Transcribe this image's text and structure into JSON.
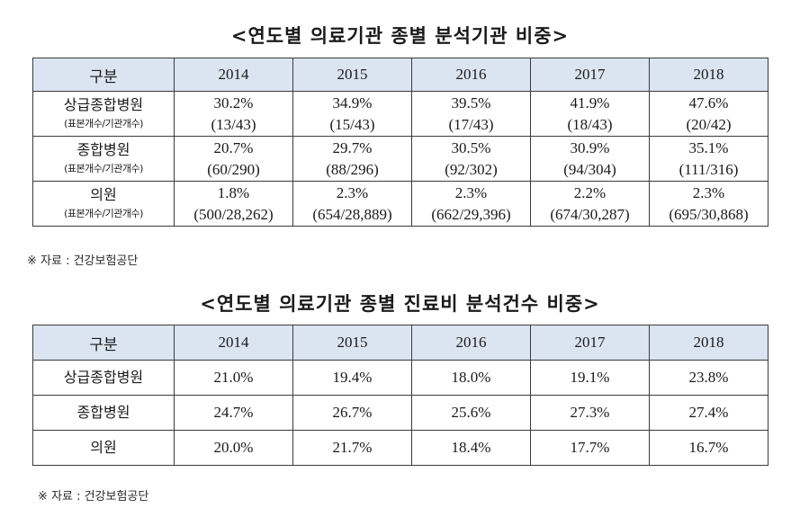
{
  "table1": {
    "title": "<연도별 의료기관 종별 분석기관 비중>",
    "header": [
      "구분",
      "2014",
      "2015",
      "2016",
      "2017",
      "2018"
    ],
    "rows": [
      {
        "label": "상급종합병원",
        "sublabel": "(표본개수/기관개수)",
        "cells": [
          {
            "pct": "30.2%",
            "count": "(13/43)"
          },
          {
            "pct": "34.9%",
            "count": "(15/43)"
          },
          {
            "pct": "39.5%",
            "count": "(17/43)"
          },
          {
            "pct": "41.9%",
            "count": "(18/43)"
          },
          {
            "pct": "47.6%",
            "count": "(20/42)"
          }
        ]
      },
      {
        "label": "종합병원",
        "sublabel": "(표본개수/기관개수)",
        "cells": [
          {
            "pct": "20.7%",
            "count": "(60/290)"
          },
          {
            "pct": "29.7%",
            "count": "(88/296)"
          },
          {
            "pct": "30.5%",
            "count": "(92/302)"
          },
          {
            "pct": "30.9%",
            "count": "(94/304)"
          },
          {
            "pct": "35.1%",
            "count": "(111/316)"
          }
        ]
      },
      {
        "label": "의원",
        "sublabel": "(표본개수/기관개수)",
        "cells": [
          {
            "pct": "1.8%",
            "count": "(500/28,262)"
          },
          {
            "pct": "2.3%",
            "count": "(654/28,889)"
          },
          {
            "pct": "2.3%",
            "count": "(662/29,396)"
          },
          {
            "pct": "2.2%",
            "count": "(674/30,287)"
          },
          {
            "pct": "2.3%",
            "count": "(695/30,868)"
          }
        ]
      }
    ],
    "source": "※ 자료 : 건강보험공단"
  },
  "table2": {
    "title": "<연도별 의료기관 종별 진료비 분석건수 비중>",
    "header": [
      "구분",
      "2014",
      "2015",
      "2016",
      "2017",
      "2018"
    ],
    "rows": [
      {
        "label": "상급종합병원",
        "cells": [
          "21.0%",
          "19.4%",
          "18.0%",
          "19.1%",
          "23.8%"
        ]
      },
      {
        "label": "종합병원",
        "cells": [
          "24.7%",
          "26.7%",
          "25.6%",
          "27.3%",
          "27.4%"
        ]
      },
      {
        "label": "의원",
        "cells": [
          "20.0%",
          "21.7%",
          "18.4%",
          "17.7%",
          "16.7%"
        ]
      }
    ],
    "source": "※ 자료 : 건강보험공단"
  },
  "colors": {
    "header_bg": "#dbe5f1",
    "border": "#3a3a3a"
  }
}
